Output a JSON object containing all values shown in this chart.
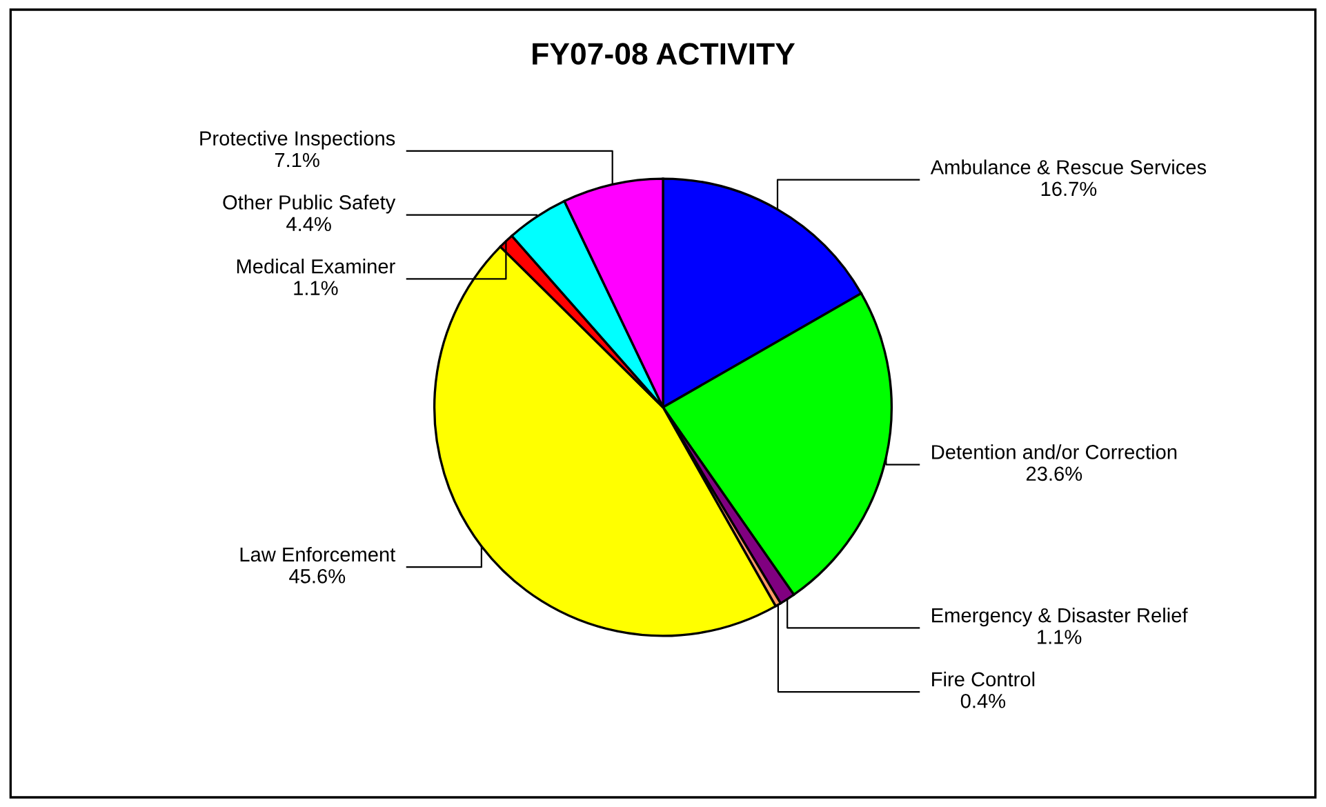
{
  "chart_data": {
    "type": "pie",
    "title": "FY07-08 ACTIVITY",
    "categories": [
      "Ambulance & Rescue Services",
      "Detention and/or Correction",
      "Emergency & Disaster Relief",
      "Fire Control",
      "Law Enforcement",
      "Medical Examiner",
      "Other Public Safety",
      "Protective Inspections"
    ],
    "values": [
      16.7,
      23.6,
      1.1,
      0.4,
      45.6,
      1.1,
      4.4,
      7.1
    ],
    "value_labels": [
      "16.7%",
      "23.6%",
      "1.1%",
      "0.4%",
      "45.6%",
      "1.1%",
      "4.4%",
      "7.1%"
    ],
    "colors": [
      "#0000ff",
      "#00ff00",
      "#800080",
      "#ff9966",
      "#ffff00",
      "#ff0000",
      "#00ffff",
      "#ff00ff"
    ]
  }
}
